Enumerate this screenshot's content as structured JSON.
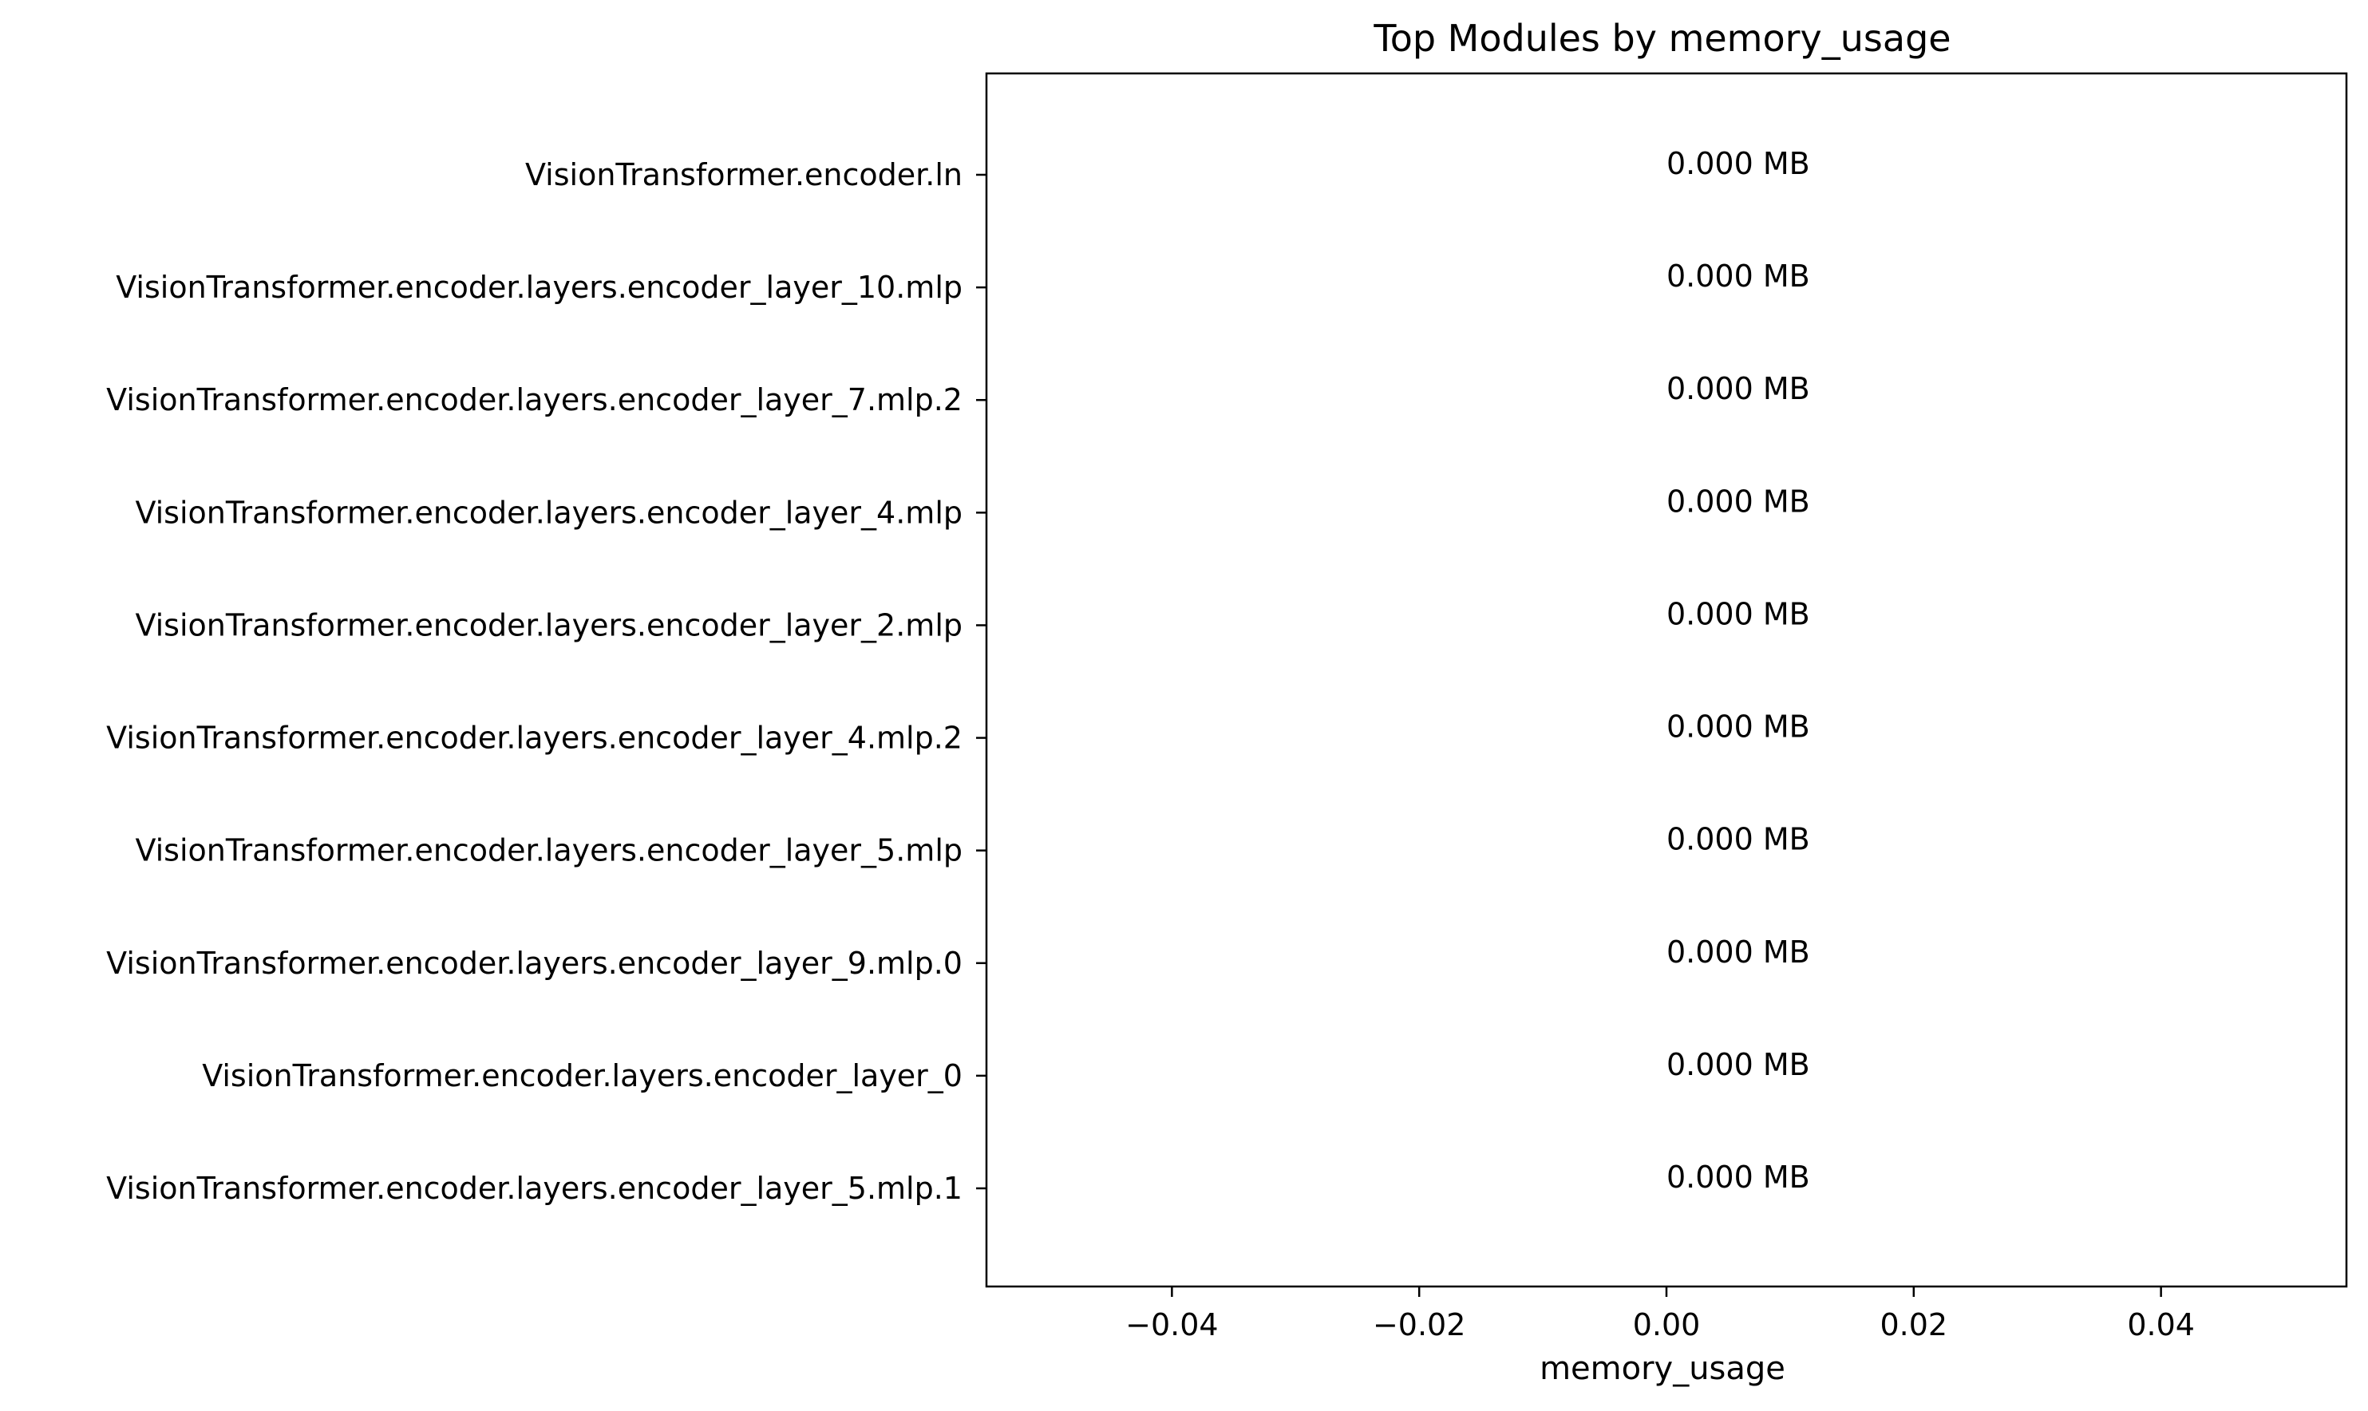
{
  "chart_data": {
    "type": "bar",
    "orientation": "horizontal",
    "title": "Top Modules by memory_usage",
    "xlabel": "memory_usage",
    "ylabel": "",
    "xlim": [
      -0.055,
      0.055
    ],
    "x_ticks": [
      -0.04,
      -0.02,
      0.0,
      0.02,
      0.04
    ],
    "x_tick_labels": [
      "−0.04",
      "−0.02",
      "0.00",
      "0.02",
      "0.04"
    ],
    "grid": false,
    "categories": [
      "VisionTransformer.encoder.ln",
      "VisionTransformer.encoder.layers.encoder_layer_10.mlp",
      "VisionTransformer.encoder.layers.encoder_layer_7.mlp.2",
      "VisionTransformer.encoder.layers.encoder_layer_4.mlp",
      "VisionTransformer.encoder.layers.encoder_layer_2.mlp",
      "VisionTransformer.encoder.layers.encoder_layer_4.mlp.2",
      "VisionTransformer.encoder.layers.encoder_layer_5.mlp",
      "VisionTransformer.encoder.layers.encoder_layer_9.mlp.0",
      "VisionTransformer.encoder.layers.encoder_layer_0",
      "VisionTransformer.encoder.layers.encoder_layer_5.mlp.1"
    ],
    "values": [
      0,
      0,
      0,
      0,
      0,
      0,
      0,
      0,
      0,
      0
    ],
    "data_labels": [
      "0.000 MB",
      "0.000 MB",
      "0.000 MB",
      "0.000 MB",
      "0.000 MB",
      "0.000 MB",
      "0.000 MB",
      "0.000 MB",
      "0.000 MB",
      "0.000 MB"
    ],
    "colors": {
      "axes": "#000000",
      "background": "#ffffff",
      "bar": "#1f77b4"
    }
  }
}
